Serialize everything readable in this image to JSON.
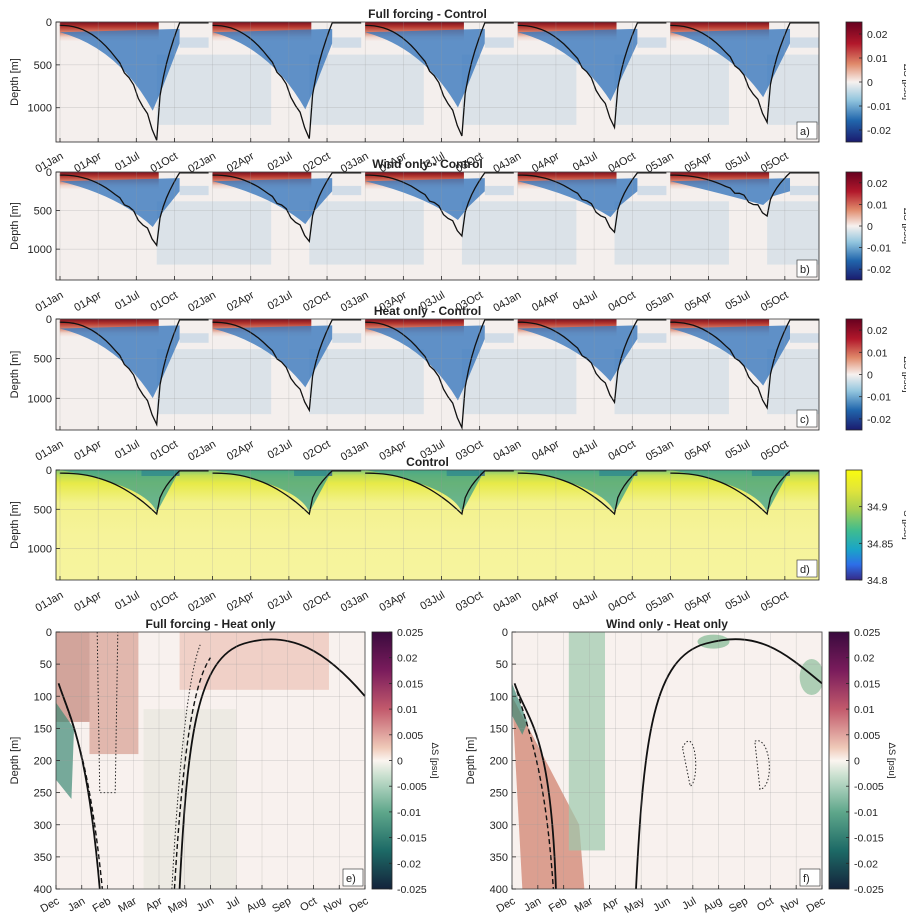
{
  "chart_data": [
    {
      "type": "heatmap",
      "panel": "a",
      "title": "Full forcing - Control",
      "ylabel": "Depth [m]",
      "y_ticks": [
        0,
        500,
        1000
      ],
      "ylim": [
        1400,
        0
      ],
      "x_ticks": [
        "01Jan",
        "01Apr",
        "01Jul",
        "01Oct",
        "02Jan",
        "02Apr",
        "02Jul",
        "02Oct",
        "03Jan",
        "03Apr",
        "03Jul",
        "03Oct",
        "04Jan",
        "04Apr",
        "04Jul",
        "04Oct",
        "05Jan",
        "05Apr",
        "05Jul",
        "05Oct"
      ],
      "colorbar": {
        "label": "ΔS [psu]",
        "ticks": [
          0.02,
          0.01,
          0,
          -0.01,
          -0.02
        ],
        "range": [
          -0.025,
          0.025
        ],
        "colormap": "red-white-blue"
      },
      "mld_max_depth_by_year": [
        1380,
        1360,
        1330,
        1230,
        1170
      ],
      "grid": true
    },
    {
      "type": "heatmap",
      "panel": "b",
      "title": "Wind only - Control",
      "ylabel": "Depth [m]",
      "y_ticks": [
        0,
        500,
        1000
      ],
      "ylim": [
        1400,
        0
      ],
      "x_ticks": [
        "01Jan",
        "01Apr",
        "01Jul",
        "01Oct",
        "02Jan",
        "02Apr",
        "02Jul",
        "02Oct",
        "03Jan",
        "03Apr",
        "03Jul",
        "03Oct",
        "04Jan",
        "04Apr",
        "04Jul",
        "04Oct",
        "05Jan",
        "05Apr",
        "05Jul",
        "05Oct"
      ],
      "colorbar": {
        "label": "ΔS [psu]",
        "ticks": [
          0.02,
          0.01,
          0,
          -0.01,
          -0.02
        ],
        "range": [
          -0.025,
          0.025
        ],
        "colormap": "red-white-blue"
      },
      "mld_max_depth_by_year": [
        950,
        900,
        830,
        780,
        570
      ],
      "grid": true
    },
    {
      "type": "heatmap",
      "panel": "c",
      "title": "Heat only - Control",
      "ylabel": "Depth [m]",
      "y_ticks": [
        0,
        500,
        1000
      ],
      "ylim": [
        1400,
        0
      ],
      "x_ticks": [
        "01Jan",
        "01Apr",
        "01Jul",
        "01Oct",
        "02Jan",
        "02Apr",
        "02Jul",
        "02Oct",
        "03Jan",
        "03Apr",
        "03Jul",
        "03Oct",
        "04Jan",
        "04Apr",
        "04Jul",
        "04Oct",
        "05Jan",
        "05Apr",
        "05Jul",
        "05Oct"
      ],
      "colorbar": {
        "label": "ΔS [psu]",
        "ticks": [
          0.02,
          0.01,
          0,
          -0.01,
          -0.02
        ],
        "range": [
          -0.025,
          0.025
        ],
        "colormap": "red-white-blue"
      },
      "mld_max_depth_by_year": [
        1330,
        1150,
        1370,
        1050,
        1120
      ],
      "grid": true
    },
    {
      "type": "heatmap",
      "panel": "d",
      "title": "Control",
      "ylabel": "Depth [m]",
      "y_ticks": [
        0,
        500,
        1000
      ],
      "ylim": [
        1400,
        0
      ],
      "x_ticks": [
        "01Jan",
        "01Apr",
        "01Jul",
        "01Oct",
        "02Jan",
        "02Apr",
        "02Jul",
        "02Oct",
        "03Jan",
        "03Apr",
        "03Jul",
        "03Oct",
        "04Jan",
        "04Apr",
        "04Jul",
        "04Oct",
        "05Jan",
        "05Apr",
        "05Jul",
        "05Oct"
      ],
      "colorbar": {
        "label": "S [psu]",
        "ticks": [
          34.9,
          34.85,
          34.8
        ],
        "range": [
          34.8,
          34.95
        ],
        "colormap": "parula"
      },
      "mld_max_depth_by_year": [
        560,
        560,
        560,
        560,
        560
      ],
      "grid": true
    },
    {
      "type": "heatmap",
      "panel": "e",
      "title": "Full forcing - Heat only",
      "ylabel": "Depth [m]",
      "y_ticks": [
        0,
        50,
        100,
        150,
        200,
        250,
        300,
        350,
        400
      ],
      "ylim": [
        400,
        0
      ],
      "x_ticks": [
        "Dec",
        "Jan",
        "Feb",
        "Mar",
        "Apr",
        "May",
        "Jun",
        "Jul",
        "Aug",
        "Sep",
        "Oct",
        "Nov",
        "Dec"
      ],
      "colorbar": {
        "label": "ΔS [psu]",
        "ticks": [
          0.025,
          0.02,
          0.015,
          0.01,
          0.005,
          0,
          -0.005,
          -0.01,
          -0.015,
          -0.02,
          -0.025
        ],
        "range": [
          -0.025,
          0.025
        ],
        "colormap": "curl"
      },
      "grid": true
    },
    {
      "type": "heatmap",
      "panel": "f",
      "title": "Wind only - Heat only",
      "ylabel": "Depth [m]",
      "y_ticks": [
        0,
        50,
        100,
        150,
        200,
        250,
        300,
        350,
        400
      ],
      "ylim": [
        400,
        0
      ],
      "x_ticks": [
        "Dec",
        "Jan",
        "Feb",
        "Mar",
        "Apr",
        "May",
        "Jun",
        "Jul",
        "Aug",
        "Sep",
        "Oct",
        "Nov",
        "Dec"
      ],
      "colorbar": {
        "label": "ΔS [psu]",
        "ticks": [
          0.025,
          0.02,
          0.015,
          0.01,
          0.005,
          0,
          -0.005,
          -0.01,
          -0.015,
          -0.02,
          -0.025
        ],
        "range": [
          -0.025,
          0.025
        ],
        "colormap": "curl"
      },
      "grid": true
    }
  ]
}
